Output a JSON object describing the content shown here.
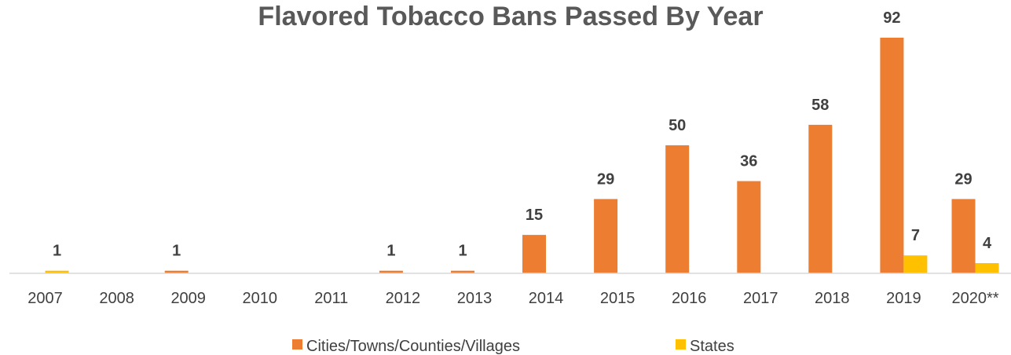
{
  "chart_data": {
    "type": "bar",
    "title": "Flavored Tobacco Bans Passed By Year",
    "xlabel": "",
    "ylabel": "",
    "categories": [
      "2007",
      "2008",
      "2009",
      "2010",
      "2011",
      "2012",
      "2013",
      "2014",
      "2015",
      "2016",
      "2017",
      "2018",
      "2019",
      "2020**"
    ],
    "series": [
      {
        "name": "Cities/Towns/Counties/Villages",
        "color": "#ED7D31",
        "values": [
          0,
          0,
          1,
          0,
          0,
          1,
          1,
          15,
          29,
          50,
          36,
          58,
          92,
          29
        ],
        "labels": [
          "",
          "",
          "1",
          "",
          "",
          "1",
          "1",
          "15",
          "29",
          "50",
          "36",
          "58",
          "92",
          "29"
        ]
      },
      {
        "name": "States",
        "color": "#FFC000",
        "values": [
          1,
          0,
          0,
          0,
          0,
          0,
          0,
          0,
          0,
          0,
          0,
          0,
          7,
          4
        ],
        "labels": [
          "1",
          "",
          "",
          "",
          "",
          "",
          "",
          "",
          "",
          "",
          "",
          "",
          "7",
          "4"
        ]
      }
    ],
    "ylim": [
      0,
      92
    ],
    "grid": false,
    "legend": "bottom"
  }
}
